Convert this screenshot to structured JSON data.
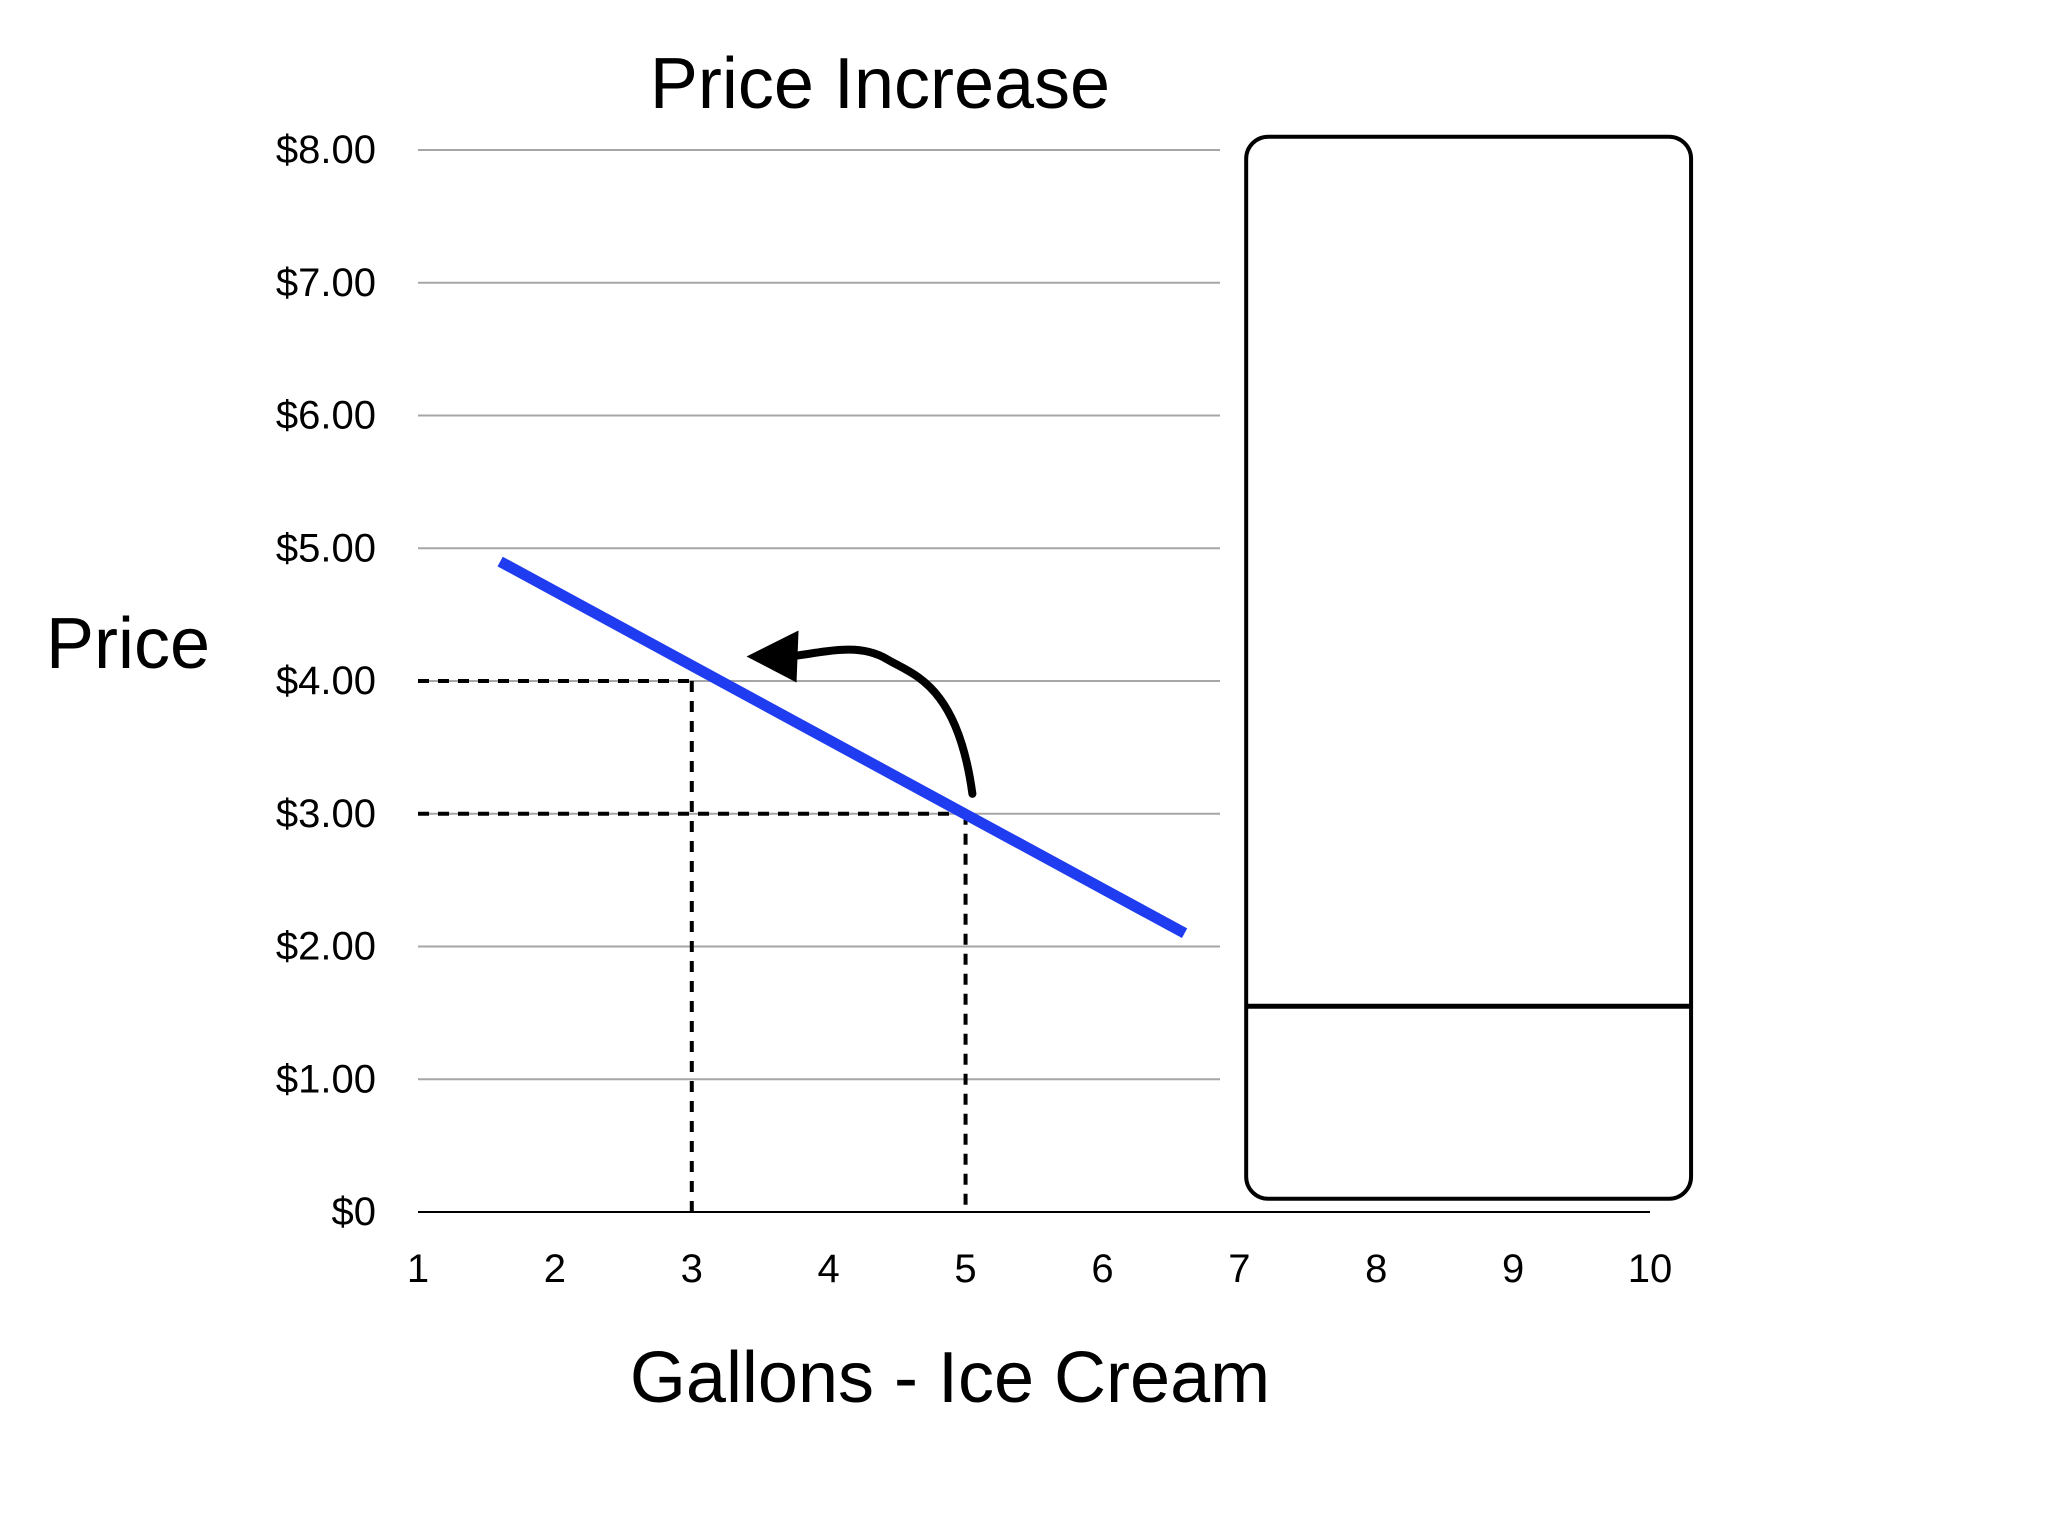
{
  "chart_data": {
    "type": "line",
    "title": "Price Increase",
    "xlabel": "Gallons - Ice Cream",
    "ylabel": "Price",
    "x_ticks": [
      1,
      2,
      3,
      4,
      5,
      6,
      7,
      8,
      9,
      10
    ],
    "x_tick_labels": [
      "1",
      "2",
      "3",
      "4",
      "5",
      "6",
      "7",
      "8",
      "9",
      "10"
    ],
    "y_ticks": [
      0,
      1,
      2,
      3,
      4,
      5,
      6,
      7,
      8
    ],
    "y_tick_labels": [
      "$0",
      "$1.00",
      "$2.00",
      "$3.00",
      "$4.00",
      "$5.00",
      "$6.00",
      "$7.00",
      "$8.00"
    ],
    "xlim": [
      1,
      10
    ],
    "ylim": [
      0,
      8
    ],
    "grid": true,
    "series": [
      {
        "color": "#1f3cf0",
        "points": [
          [
            1.6,
            4.9
          ],
          [
            6.6,
            2.1
          ]
        ]
      }
    ],
    "reference_points": [
      {
        "x": 3,
        "y": 4
      },
      {
        "x": 5,
        "y": 3
      }
    ],
    "annotation_arrow": {
      "from": [
        5.05,
        3.15
      ],
      "to": [
        3.4,
        4.2
      ]
    },
    "answer_box": {
      "x_range": [
        7.05,
        10.3
      ],
      "y_range": [
        0.1,
        8.1
      ],
      "divider_y": 1.55
    }
  }
}
